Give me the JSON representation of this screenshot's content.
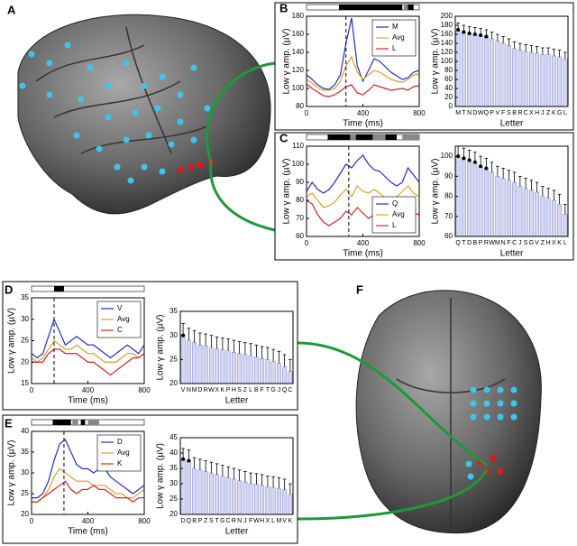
{
  "figure_labels": [
    "A",
    "F"
  ],
  "chart_data": [
    {
      "type": "line",
      "panel": "B",
      "xlabel": "Time (ms)",
      "ylabel": "Low γ amp. (µV)",
      "x": [
        0,
        40,
        80,
        120,
        160,
        200,
        240,
        280,
        320,
        360,
        400,
        440,
        480,
        520,
        560,
        600,
        640,
        680,
        720,
        760,
        800
      ],
      "xlim": [
        0,
        800
      ],
      "xticks": [
        0,
        400,
        800
      ],
      "ylim": [
        80,
        180
      ],
      "yticks": [
        80,
        100,
        120,
        140,
        160,
        180
      ],
      "event_x": 280,
      "legend": "upper right",
      "significance": [
        {
          "x": [
            230,
            680
          ],
          "color": "#000000"
        },
        {
          "x": [
            690,
            720
          ],
          "color": "#888888"
        },
        {
          "x": [
            720,
            760
          ],
          "color": "#000000"
        }
      ],
      "series": [
        {
          "name": "M",
          "color": "#1f2fd0",
          "values": [
            115,
            110,
            104,
            100,
            99,
            104,
            115,
            150,
            178,
            125,
            108,
            120,
            133,
            130,
            124,
            118,
            114,
            110,
            112,
            118,
            120
          ]
        },
        {
          "name": "Avg",
          "color": "#e0a020",
          "values": [
            110,
            106,
            101,
            98,
            98,
            100,
            108,
            125,
            135,
            118,
            110,
            115,
            120,
            118,
            114,
            110,
            108,
            107,
            110,
            115,
            116
          ]
        },
        {
          "name": "L",
          "color": "#e02020",
          "values": [
            105,
            100,
            96,
            92,
            91,
            93,
            97,
            102,
            104,
            95,
            93,
            98,
            104,
            102,
            100,
            98,
            99,
            100,
            98,
            102,
            103
          ]
        }
      ]
    },
    {
      "type": "bar",
      "xlabel": "Letter",
      "ylabel": "Low γ amp. (µV)",
      "categories": [
        "M",
        "T",
        "N",
        "D",
        "W",
        "Q",
        "P",
        "V",
        "F",
        "S",
        "B",
        "R",
        "C",
        "X",
        "H",
        "J",
        "Z",
        "K",
        "G",
        "L"
      ],
      "values": [
        170,
        165,
        162,
        160,
        158,
        155,
        150,
        145,
        140,
        135,
        128,
        125,
        122,
        120,
        118,
        115,
        115,
        112,
        110,
        105
      ],
      "errors": [
        15,
        15,
        15,
        15,
        15,
        15,
        15,
        15,
        15,
        15,
        15,
        15,
        15,
        15,
        15,
        15,
        15,
        15,
        15,
        15
      ],
      "highlight_first": 6,
      "ylim": [
        0,
        200
      ],
      "yticks": [
        0,
        20,
        40,
        60,
        80,
        100,
        120,
        140,
        160,
        180,
        200
      ]
    },
    {
      "type": "line",
      "panel": "C",
      "xlabel": "Time (ms)",
      "ylabel": "Low γ amp. (µV)",
      "x": [
        0,
        40,
        80,
        120,
        160,
        200,
        240,
        280,
        320,
        360,
        400,
        440,
        480,
        520,
        560,
        600,
        640,
        680,
        720,
        760,
        800
      ],
      "xlim": [
        0,
        800
      ],
      "xticks": [
        0,
        400,
        800
      ],
      "ylim": [
        60,
        110
      ],
      "yticks": [
        60,
        70,
        80,
        90,
        100,
        110
      ],
      "event_x": 300,
      "legend": "lower right",
      "significance": [
        {
          "x": [
            150,
            310
          ],
          "color": "#000000"
        },
        {
          "x": [
            310,
            350
          ],
          "color": "#888888"
        },
        {
          "x": [
            350,
            470
          ],
          "color": "#000000"
        },
        {
          "x": [
            470,
            560
          ],
          "color": "#888888"
        },
        {
          "x": [
            560,
            640
          ],
          "color": "#000000"
        },
        {
          "x": [
            680,
            800
          ],
          "color": "#888888"
        }
      ],
      "series": [
        {
          "name": "Q",
          "color": "#1f2fd0",
          "values": [
            85,
            90,
            86,
            84,
            86,
            90,
            95,
            100,
            98,
            102,
            105,
            100,
            97,
            96,
            93,
            90,
            88,
            90,
            98,
            94,
            90
          ]
        },
        {
          "name": "Avg",
          "color": "#e0a020",
          "values": [
            82,
            84,
            80,
            76,
            77,
            79,
            83,
            86,
            82,
            88,
            85,
            84,
            86,
            84,
            81,
            80,
            82,
            85,
            88,
            84,
            82
          ]
        },
        {
          "name": "L",
          "color": "#e02020",
          "values": [
            80,
            78,
            72,
            68,
            66,
            68,
            70,
            74,
            72,
            76,
            73,
            70,
            72,
            74,
            72,
            70,
            70,
            72,
            76,
            73,
            72
          ]
        }
      ]
    },
    {
      "type": "bar",
      "xlabel": "Letter",
      "ylabel": "Low γ amp. (µV)",
      "categories": [
        "Q",
        "T",
        "D",
        "B",
        "P",
        "R",
        "W",
        "M",
        "N",
        "F",
        "C",
        "J",
        "S",
        "G",
        "V",
        "Z",
        "H",
        "X",
        "K",
        "L"
      ],
      "values": [
        100,
        99,
        98,
        97,
        95,
        94,
        92,
        90,
        89,
        88,
        87,
        85,
        84,
        83,
        82,
        80,
        79,
        78,
        76,
        71
      ],
      "errors": [
        5,
        5,
        5,
        5,
        5,
        5,
        5,
        5,
        5,
        5,
        5,
        5,
        5,
        5,
        5,
        5,
        5,
        5,
        5,
        5
      ],
      "highlight_first": 6,
      "ylim": [
        60,
        105
      ],
      "yticks": [
        60,
        70,
        80,
        90,
        100
      ]
    },
    {
      "type": "line",
      "panel": "D",
      "xlabel": "Time (ms)",
      "ylabel": "Low γ amp. (µV)",
      "x": [
        0,
        40,
        80,
        120,
        160,
        200,
        240,
        280,
        320,
        360,
        400,
        440,
        480,
        520,
        560,
        600,
        640,
        680,
        720,
        760,
        800
      ],
      "xlim": [
        0,
        800
      ],
      "xticks": [
        0,
        400,
        800
      ],
      "ylim": [
        15,
        35
      ],
      "yticks": [
        15,
        20,
        25,
        30,
        35
      ],
      "event_x": 160,
      "legend": "upper right",
      "significance": [
        {
          "x": [
            160,
            230
          ],
          "color": "#000000"
        }
      ],
      "series": [
        {
          "name": "V",
          "color": "#1f2fd0",
          "values": [
            22,
            21,
            22,
            26,
            30,
            27,
            24,
            25,
            26,
            25,
            24,
            24,
            23,
            22,
            21,
            22,
            23,
            24,
            23,
            22,
            24
          ]
        },
        {
          "name": "Avg",
          "color": "#e0a020",
          "values": [
            21,
            20,
            21,
            23,
            25,
            24,
            23,
            23,
            24,
            23,
            22,
            22,
            21,
            20,
            20,
            20,
            21,
            22,
            22,
            21,
            22
          ]
        },
        {
          "name": "C",
          "color": "#e02020",
          "values": [
            20,
            20,
            20,
            22,
            23,
            23,
            22,
            22,
            22,
            21,
            20,
            20,
            19,
            18,
            17,
            18,
            19,
            20,
            21,
            21,
            22
          ]
        }
      ]
    },
    {
      "type": "bar",
      "xlabel": "Letter",
      "ylabel": "Low γ amp. (µV)",
      "categories": [
        "V",
        "N",
        "M",
        "D",
        "R",
        "W",
        "X",
        "K",
        "P",
        "H",
        "S",
        "Z",
        "L",
        "B",
        "F",
        "T",
        "G",
        "J",
        "Q",
        "C"
      ],
      "values": [
        30,
        29,
        28.5,
        28,
        27.8,
        27.5,
        27.2,
        27,
        26.8,
        26.5,
        26.2,
        26,
        25.8,
        25.5,
        25.2,
        25,
        24.6,
        24.2,
        23.5,
        22.5
      ],
      "errors": [
        2.5,
        2.5,
        2.5,
        2.5,
        2.5,
        2.5,
        2.5,
        2.5,
        2.5,
        2.5,
        2.5,
        2.5,
        2.5,
        2.5,
        2.5,
        2.5,
        2.5,
        2.5,
        2.5,
        2.5
      ],
      "highlight_first": 1,
      "ylim": [
        20,
        35
      ],
      "yticks": [
        20,
        25,
        30,
        35
      ]
    },
    {
      "type": "line",
      "panel": "E",
      "xlabel": "Time (ms)",
      "ylabel": "Low γ amp. (µV)",
      "x": [
        0,
        40,
        80,
        120,
        160,
        200,
        240,
        280,
        320,
        360,
        400,
        440,
        480,
        520,
        560,
        600,
        640,
        680,
        720,
        760,
        800
      ],
      "xlim": [
        0,
        800
      ],
      "xticks": [
        0,
        400,
        800
      ],
      "ylim": [
        20,
        40
      ],
      "yticks": [
        20,
        25,
        30,
        35,
        40
      ],
      "event_x": 230,
      "legend": "upper right",
      "significance": [
        {
          "x": [
            150,
            280
          ],
          "color": "#000000"
        },
        {
          "x": [
            290,
            330
          ],
          "color": "#888888"
        },
        {
          "x": [
            350,
            380
          ],
          "color": "#000000"
        },
        {
          "x": [
            400,
            480
          ],
          "color": "#888888"
        }
      ],
      "series": [
        {
          "name": "D",
          "color": "#1f2fd0",
          "values": [
            24,
            24,
            25,
            28,
            33,
            37,
            38,
            35,
            32,
            31,
            31,
            30,
            31,
            31,
            29,
            28,
            27,
            26,
            25,
            26,
            27
          ]
        },
        {
          "name": "Avg",
          "color": "#e0a020",
          "values": [
            23,
            23,
            24,
            26,
            29,
            31,
            30,
            29,
            28,
            28,
            28,
            27,
            27,
            27,
            26,
            25,
            25,
            24,
            24,
            25,
            26
          ]
        },
        {
          "name": "K",
          "color": "#e02020",
          "values": [
            23,
            23,
            24,
            25,
            26,
            27,
            28,
            26,
            25,
            26,
            26,
            27,
            26,
            26,
            25,
            24,
            24,
            24,
            23,
            24,
            24
          ]
        }
      ]
    },
    {
      "type": "bar",
      "xlabel": "Letter",
      "ylabel": "Low γ amp. (µV)",
      "categories": [
        "D",
        "Q",
        "B",
        "P",
        "Z",
        "S",
        "T",
        "G",
        "C",
        "R",
        "N",
        "J",
        "F",
        "W",
        "H",
        "X",
        "L",
        "M",
        "V",
        "K"
      ],
      "values": [
        38,
        37.5,
        35,
        34.5,
        34,
        33.5,
        33,
        32.5,
        32,
        31.5,
        31,
        30.5,
        30,
        29.8,
        29.5,
        29,
        28.8,
        28.5,
        28,
        26.5
      ],
      "errors": [
        3.5,
        3.5,
        3.5,
        3.5,
        3.5,
        3.5,
        3.5,
        3.5,
        3.5,
        3.5,
        3.5,
        3.5,
        3.5,
        3.5,
        3.5,
        3.5,
        3.5,
        3.5,
        3.5,
        3.5
      ],
      "highlight_first": 2,
      "ylim": [
        20,
        45
      ],
      "yticks": [
        20,
        25,
        30,
        35,
        40,
        45
      ]
    }
  ]
}
